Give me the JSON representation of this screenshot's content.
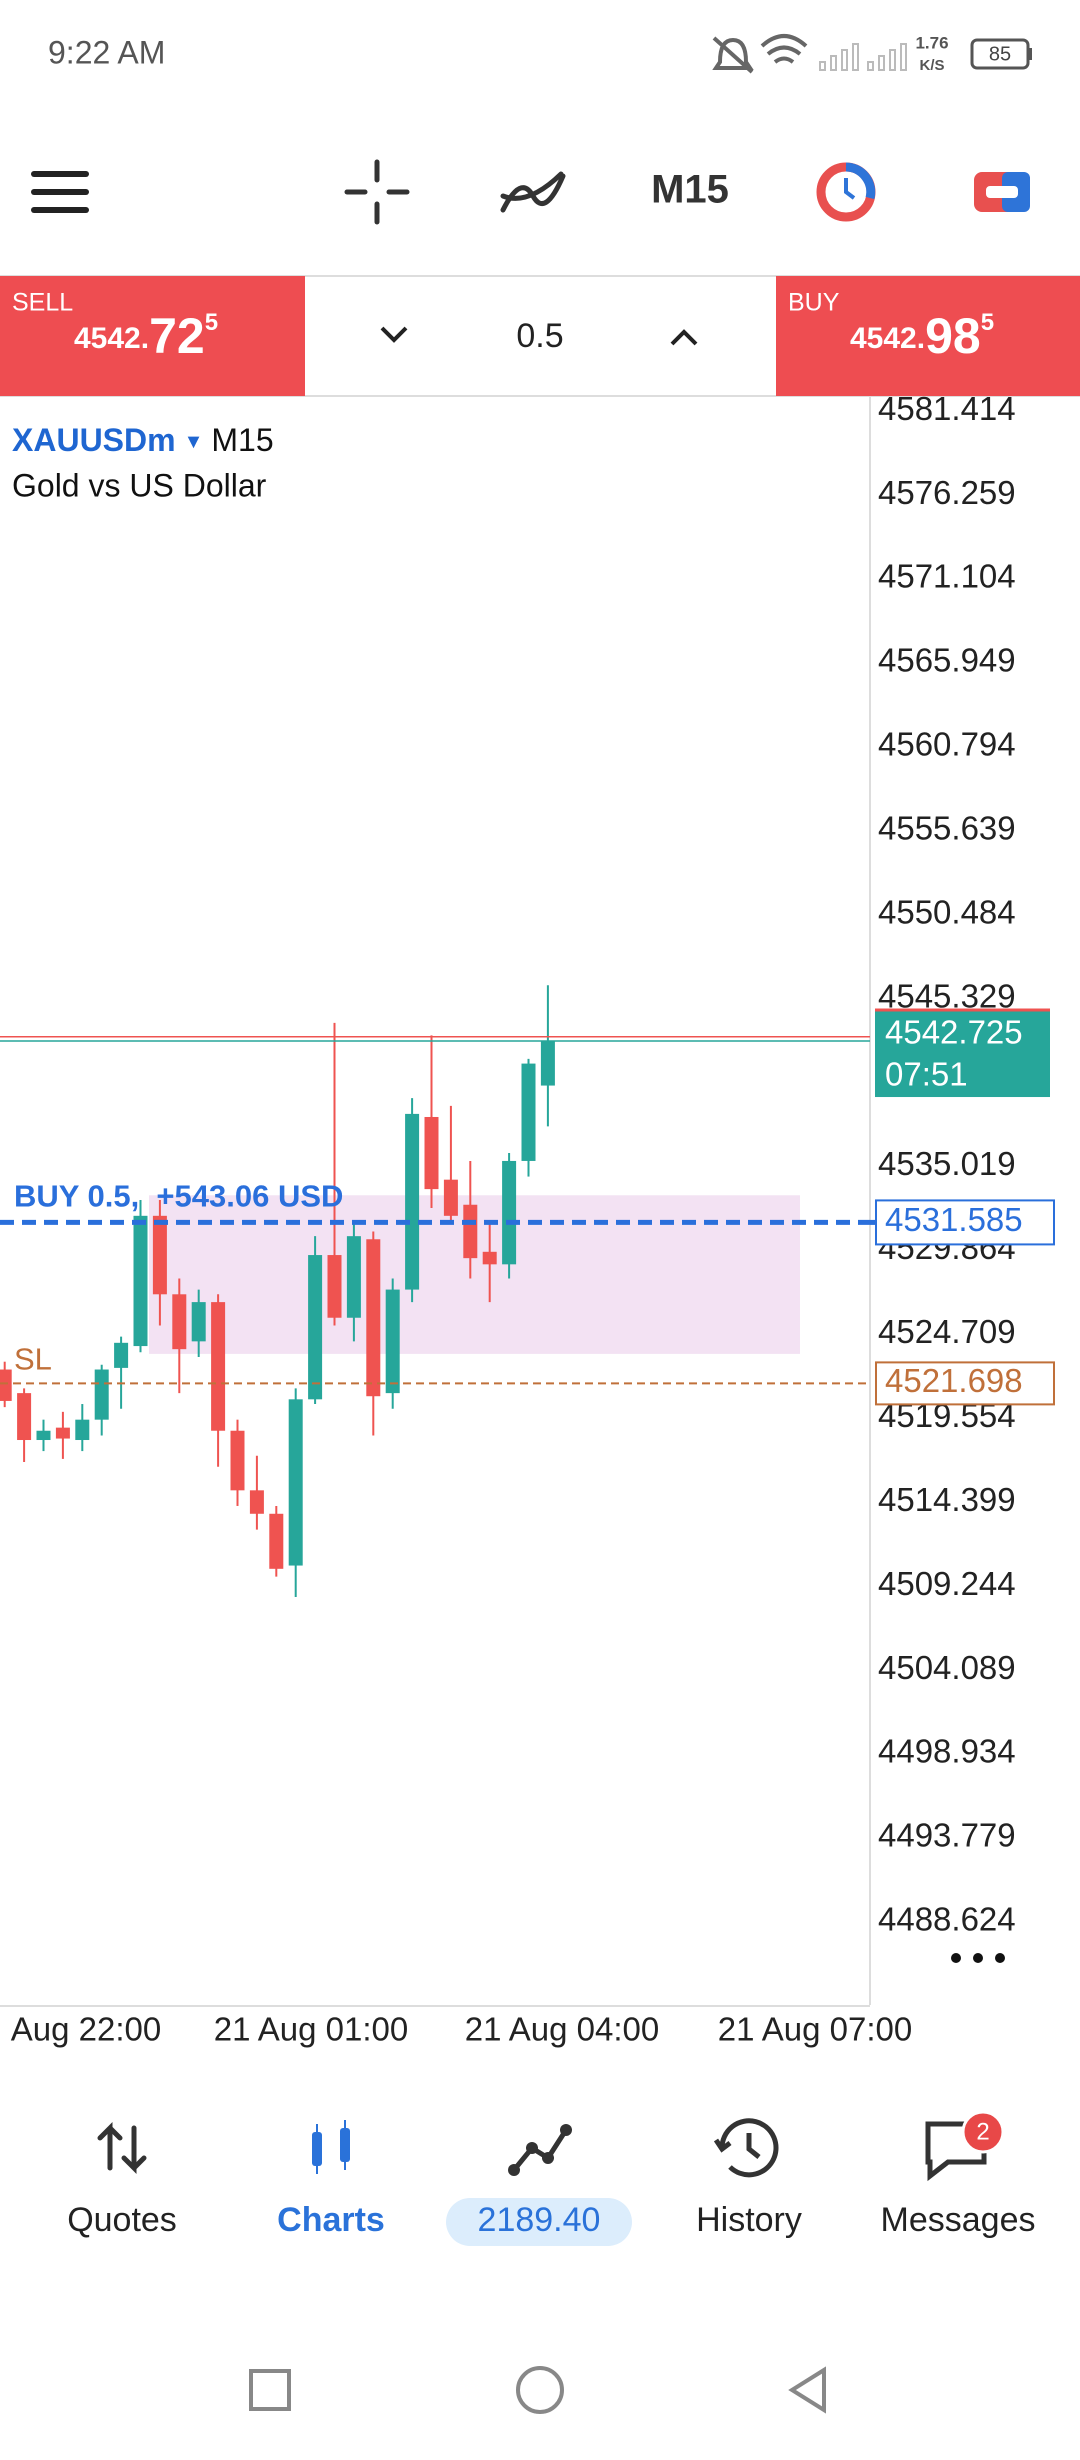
{
  "status_bar": {
    "time": "9:22 AM",
    "net_speed": "1.76",
    "net_unit": "K/S",
    "battery": "85"
  },
  "toolbar": {
    "timeframe": "M15"
  },
  "trade_panel": {
    "sell": {
      "label": "SELL",
      "price_main": "4542.",
      "price_big": "72",
      "price_sup": "5"
    },
    "volume": "0.5",
    "buy": {
      "label": "BUY",
      "price_main": "4542.",
      "price_big": "98",
      "price_sup": "5"
    }
  },
  "chart_data": {
    "type": "candlestick",
    "symbol": "XAUUSDm",
    "timeframe": "M15",
    "description": "Gold vs US Dollar",
    "up_color": "#26a69a",
    "down_color": "#ef5350",
    "open": [
      4522.55,
      4521.1,
      4518.22,
      4518.98,
      4518.22,
      4519.47,
      4522.65,
      4523.99,
      4531.99,
      4527.17,
      4524.28,
      4526.69,
      4518.79,
      4515.13,
      4513.69,
      4510.51,
      4520.72,
      4529.58,
      4525.73,
      4530.55,
      4521.1,
      4527.46,
      4538.06,
      4534.21,
      4532.67,
      4529.78,
      4529.01,
      4535.36,
      4539.99
    ],
    "high": [
      4523.03,
      4521.39,
      4519.47,
      4519.95,
      4520.43,
      4522.84,
      4524.57,
      4532.96,
      4532.96,
      4528.14,
      4527.46,
      4527.17,
      4519.47,
      4517.25,
      4514.17,
      4521.39,
      4530.74,
      4543.84,
      4531.51,
      4531.03,
      4528.14,
      4539.22,
      4543.07,
      4538.74,
      4535.36,
      4531.51,
      4535.85,
      4541.63,
      4546.15
    ],
    "low": [
      4520.24,
      4516.87,
      4517.54,
      4517.06,
      4517.54,
      4518.5,
      4520.14,
      4523.61,
      4525.25,
      4521.1,
      4523.32,
      4516.58,
      4514.17,
      4512.72,
      4509.83,
      4508.58,
      4520.43,
      4525.25,
      4524.28,
      4518.5,
      4520.14,
      4526.69,
      4532.47,
      4531.51,
      4528.14,
      4526.69,
      4528.14,
      4534.4,
      4537.48
    ],
    "close": [
      4520.62,
      4518.22,
      4518.79,
      4518.31,
      4519.47,
      4522.55,
      4524.19,
      4531.99,
      4527.17,
      4523.8,
      4526.69,
      4518.79,
      4515.13,
      4513.69,
      4510.31,
      4520.72,
      4529.58,
      4525.73,
      4530.74,
      4520.91,
      4527.46,
      4538.25,
      4533.63,
      4531.99,
      4529.39,
      4529.01,
      4535.36,
      4541.34,
      4542.725
    ],
    "ylim": [
      4483.52,
      4582.28
    ],
    "yticks": [
      4581.414,
      4576.259,
      4571.104,
      4565.949,
      4560.794,
      4555.639,
      4550.484,
      4545.329,
      4535.019,
      4529.864,
      4524.709,
      4519.554,
      4514.399,
      4509.244,
      4504.089,
      4498.934,
      4493.779,
      4488.624
    ],
    "x_labels": [
      "Aug 22:00",
      "21 Aug 01:00",
      "21 Aug 04:00",
      "21 Aug 07:00"
    ],
    "bid_line": {
      "value": 4542.725,
      "countdown": "07:51",
      "color": "#26a69a"
    },
    "ask_line": {
      "value": 4542.985,
      "color": "#ef5350"
    },
    "position": {
      "label": "BUY 0.5,  +543.06 USD",
      "value": 4531.585,
      "color": "#2a6fdb"
    },
    "stop_loss": {
      "label": "SL",
      "value": 4521.698,
      "color": "#c0703a"
    },
    "zone": {
      "top": 4533.25,
      "bottom": 4523.51,
      "color": "#f3e2f3"
    }
  },
  "bottom_nav": {
    "items": [
      "Quotes",
      "Charts",
      "2189.40",
      "History",
      "Messages"
    ],
    "active": 1,
    "badge": "2"
  }
}
